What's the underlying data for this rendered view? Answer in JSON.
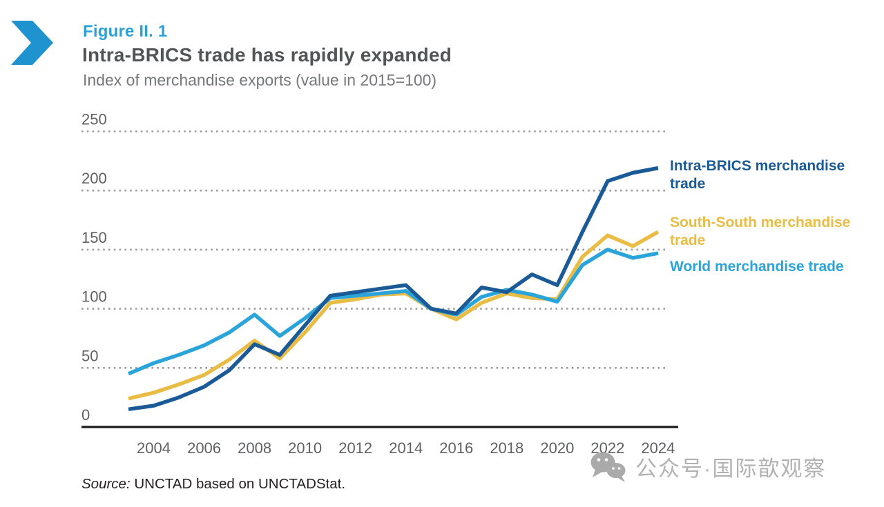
{
  "header": {
    "figure_label": "Figure II. 1",
    "title": "Intra-BRICS trade has rapidly expanded",
    "subtitle": "Index of merchandise exports (value in 2015=100)"
  },
  "colors": {
    "accent_blue": "#1f93d0",
    "intra_brics": "#1a5b97",
    "south_south": "#e9bc45",
    "world": "#2aa4d9",
    "grid": "#9b9b9b",
    "axis": "#1a1a1a",
    "tick_label": "#5f6062",
    "watermark_gray": "#aaaaaa"
  },
  "chart_data": {
    "type": "line",
    "title": "Intra-BRICS trade has rapidly expanded",
    "subtitle": "Index of merchandise exports (value in 2015=100)",
    "xlabel": "",
    "ylabel": "",
    "x": [
      2003,
      2004,
      2005,
      2006,
      2007,
      2008,
      2009,
      2010,
      2011,
      2012,
      2013,
      2014,
      2015,
      2016,
      2017,
      2018,
      2019,
      2020,
      2021,
      2022,
      2023,
      2024
    ],
    "series": [
      {
        "name": "Intra-BRICS merchandise trade",
        "color_key": "intra_brics",
        "z": 3,
        "values": [
          15,
          18,
          25,
          34,
          48,
          70,
          61,
          86,
          111,
          114,
          117,
          120,
          100,
          96,
          118,
          114,
          129,
          120,
          165,
          208,
          215,
          219
        ]
      },
      {
        "name": "South-South merchandise trade",
        "color_key": "south_south",
        "z": 1,
        "values": [
          24,
          29,
          36,
          44,
          57,
          73,
          58,
          80,
          105,
          108,
          112,
          113,
          100,
          91,
          105,
          113,
          109,
          108,
          144,
          162,
          153,
          165
        ]
      },
      {
        "name": "World merchandise trade",
        "color_key": "world",
        "z": 2,
        "values": [
          45,
          54,
          61,
          69,
          80,
          95,
          77,
          92,
          109,
          111,
          113,
          115,
          100,
          95,
          110,
          116,
          112,
          106,
          137,
          150,
          143,
          147
        ]
      }
    ],
    "ylim": [
      0,
      250
    ],
    "yticks": [
      0,
      50,
      100,
      150,
      200,
      250
    ],
    "xticks": [
      2004,
      2006,
      2008,
      2010,
      2012,
      2014,
      2016,
      2018,
      2020,
      2022,
      2024
    ],
    "grid": "horizontal-dotted",
    "legend_position": "right"
  },
  "legend": [
    {
      "label": "Intra-BRICS merchandise trade",
      "color_key": "intra_brics"
    },
    {
      "label": "South-South merchandise trade",
      "color_key": "south_south"
    },
    {
      "label": "World merchandise trade",
      "color_key": "world"
    }
  ],
  "source": {
    "prefix": "Source:",
    "text": " UNCTAD based on UNCTADStat."
  },
  "watermark": {
    "text": "公众号·国际歆观察"
  }
}
